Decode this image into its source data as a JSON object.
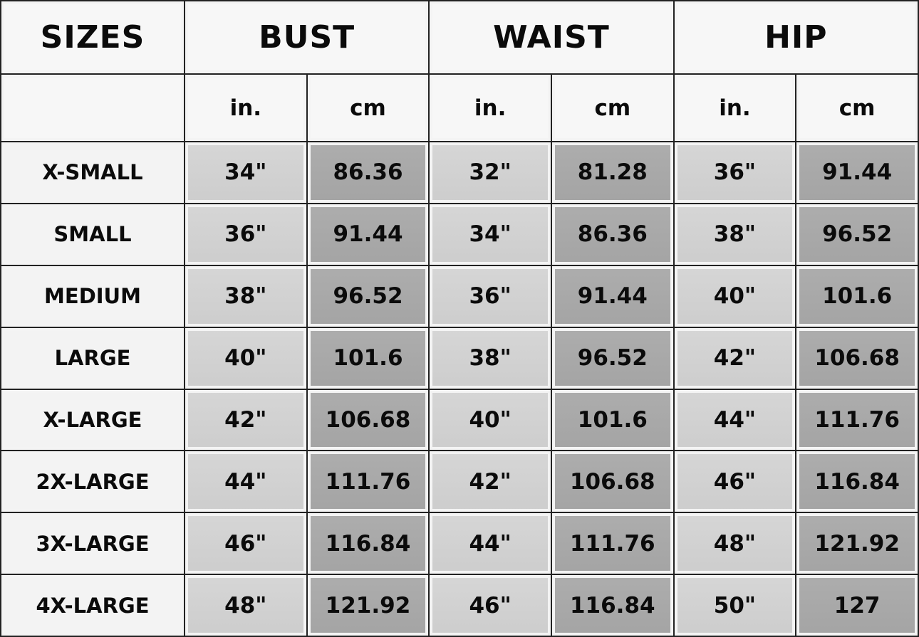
{
  "headers": {
    "sizes": "SIZES",
    "groups": [
      "BUST",
      "WAIST",
      "HIP"
    ]
  },
  "units": [
    "in.",
    "cm",
    "in.",
    "cm",
    "in.",
    "cm"
  ],
  "colors": {
    "grid": "#222222",
    "label_bg": "#f3f3f3",
    "inch_bg": "#d2d2d2",
    "cm_bg": "#a8a8a8",
    "text": "#0b0b0b"
  },
  "rows": [
    {
      "size": "X-SMALL",
      "values": [
        "34\"",
        "86.36",
        "32\"",
        "81.28",
        "36\"",
        "91.44"
      ]
    },
    {
      "size": "SMALL",
      "values": [
        "36\"",
        "91.44",
        "34\"",
        "86.36",
        "38\"",
        "96.52"
      ]
    },
    {
      "size": "MEDIUM",
      "values": [
        "38\"",
        "96.52",
        "36\"",
        "91.44",
        "40\"",
        "101.6"
      ]
    },
    {
      "size": "LARGE",
      "values": [
        "40\"",
        "101.6",
        "38\"",
        "96.52",
        "42\"",
        "106.68"
      ]
    },
    {
      "size": "X-LARGE",
      "values": [
        "42\"",
        "106.68",
        "40\"",
        "101.6",
        "44\"",
        "111.76"
      ]
    },
    {
      "size": "2X-LARGE",
      "values": [
        "44\"",
        "111.76",
        "42\"",
        "106.68",
        "46\"",
        "116.84"
      ]
    },
    {
      "size": "3X-LARGE",
      "values": [
        "46\"",
        "116.84",
        "44\"",
        "111.76",
        "48\"",
        "121.92"
      ]
    },
    {
      "size": "4X-LARGE",
      "values": [
        "48\"",
        "121.92",
        "46\"",
        "116.84",
        "50\"",
        "127"
      ]
    }
  ]
}
